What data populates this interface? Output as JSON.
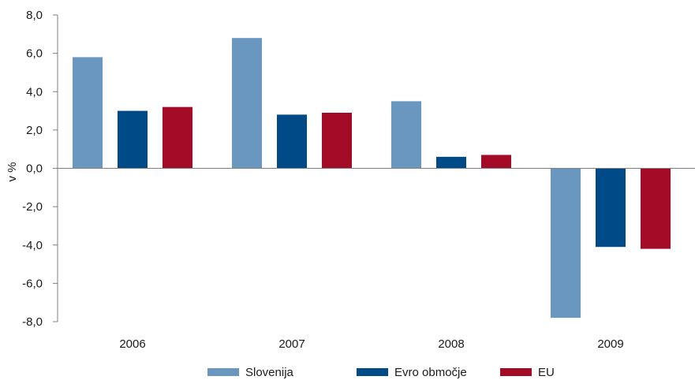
{
  "chart_data": {
    "type": "bar",
    "ylabel": "v %",
    "ylim": [
      -8,
      8
    ],
    "y_tick_step": 2,
    "y_tick_labels": [
      "8,0",
      "6,0",
      "4,0",
      "2,0",
      "0,0",
      "-2,0",
      "-4,0",
      "-6,0",
      "-8,0"
    ],
    "categories": [
      "2006",
      "2007",
      "2008",
      "2009"
    ],
    "series": [
      {
        "name": "Slovenija",
        "color": "#6a97c0",
        "values": [
          5.8,
          6.8,
          3.5,
          -7.8
        ]
      },
      {
        "name": "Evro območje",
        "color": "#004a87",
        "values": [
          3.0,
          2.8,
          0.6,
          -4.1
        ]
      },
      {
        "name": "EU",
        "color": "#a30b27",
        "values": [
          3.2,
          2.9,
          0.7,
          -4.2
        ]
      }
    ],
    "grid": false,
    "legend_position": "bottom"
  }
}
